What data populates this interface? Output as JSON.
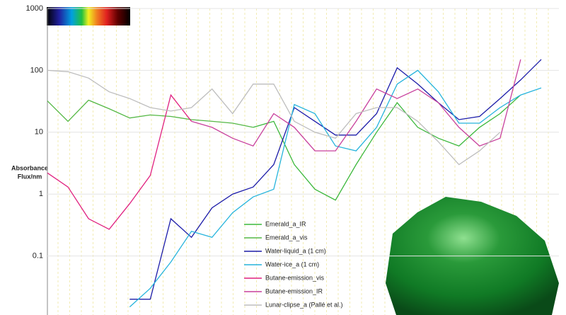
{
  "chart_data": {
    "type": "line",
    "log_y": true,
    "grid": true,
    "y_label": [
      "Absorbance",
      "Flux/nm"
    ],
    "ylim": [
      0.01,
      1000
    ],
    "yticks": [
      0.1,
      1,
      10,
      100,
      1000
    ],
    "categories": [
      null,
      null,
      null,
      null,
      null,
      null,
      null,
      null,
      null,
      null,
      null,
      null,
      null,
      null,
      null,
      null,
      null,
      null,
      null,
      null,
      null,
      null,
      null,
      null,
      null
    ],
    "series": [
      {
        "name": "Emerald_a_IR",
        "color": "#3cb83c",
        "values": [
          null,
          null,
          null,
          null,
          null,
          null,
          null,
          null,
          null,
          null,
          12,
          15,
          3,
          1.2,
          0.8,
          3,
          10,
          30,
          12,
          8,
          6,
          12,
          20,
          40,
          null
        ]
      },
      {
        "name": "Emerald_a_vis",
        "color": "#55b845",
        "values": [
          32,
          15,
          33,
          24,
          17,
          19,
          18,
          16,
          15,
          14,
          12,
          null,
          null,
          null,
          null,
          null,
          null,
          null,
          null,
          null,
          null,
          null,
          null,
          null,
          null
        ]
      },
      {
        "name": "Water-liquid_a (1 cm)",
        "color": "#1c1ca8",
        "values": [
          null,
          null,
          null,
          null,
          0.02,
          0.02,
          0.4,
          0.2,
          0.6,
          1.0,
          1.3,
          3,
          25,
          15,
          9,
          9,
          20,
          110,
          60,
          30,
          16,
          18,
          35,
          70,
          150
        ]
      },
      {
        "name": "Water-ice_a (1 cm)",
        "color": "#26b4dc",
        "values": [
          null,
          null,
          null,
          null,
          0.015,
          0.03,
          0.08,
          0.25,
          0.2,
          0.5,
          0.9,
          1.2,
          28,
          20,
          6,
          5,
          12,
          60,
          100,
          45,
          14,
          14,
          25,
          40,
          52
        ]
      },
      {
        "name": "Butane-emission_vis",
        "color": "#e0207f",
        "values": [
          2.2,
          1.3,
          0.4,
          0.27,
          0.7,
          2,
          40,
          15,
          null,
          null,
          null,
          null,
          null,
          null,
          null,
          null,
          null,
          null,
          null,
          null,
          null,
          null,
          null,
          null,
          null
        ]
      },
      {
        "name": "Butane-emission_IR",
        "color": "#c8409c",
        "values": [
          null,
          null,
          null,
          null,
          null,
          null,
          null,
          15,
          12,
          8,
          6,
          20,
          12,
          5,
          5,
          15,
          50,
          35,
          50,
          30,
          12,
          6,
          8,
          150,
          null
        ]
      },
      {
        "name": "Lunar-clipse_a (Pallé et al.)",
        "color": "#bdbdbd",
        "values": [
          100,
          95,
          75,
          45,
          35,
          25,
          22,
          25,
          50,
          20,
          60,
          60,
          15,
          10,
          8,
          20,
          25,
          25,
          15,
          7,
          3,
          5,
          10,
          null,
          null
        ]
      }
    ]
  }
}
